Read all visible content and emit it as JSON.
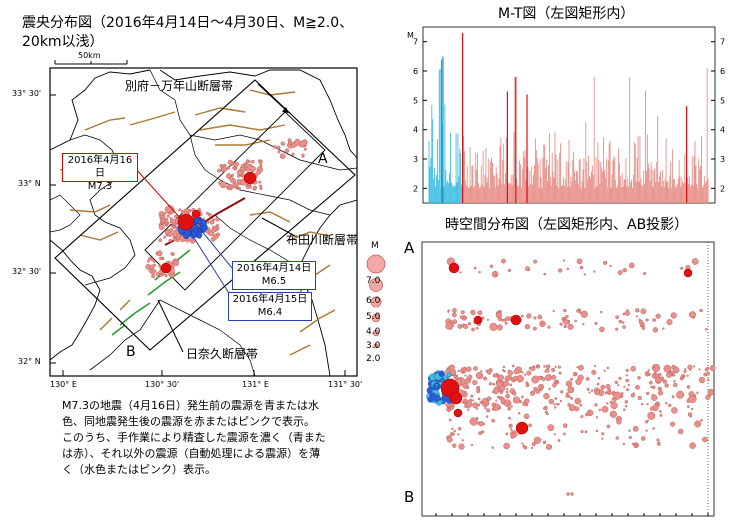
{
  "map": {
    "title_line1": "震央分布図（2016年4月14日～4月30日、M≧2.0、",
    "title_line2": "20km以浅）",
    "scale_label": "50km",
    "lat_labels": [
      "33° 30'",
      "33° N",
      "32° 30'",
      "32° N"
    ],
    "lon_labels": [
      "130° E",
      "130° 30'",
      "131° E",
      "131° 30'"
    ],
    "label_A": "A",
    "label_B": "B",
    "fault_beppu": "別府－万年山断層帯",
    "fault_futagawa": "布田川断層帯",
    "fault_hinagu": "日奈久断層帯",
    "callout_m73_date": "2016年4月16日",
    "callout_m73_mag": "M7.3",
    "callout_m65_date": "2016年4月14日",
    "callout_m65_mag": "M6.5",
    "callout_m64_date": "2016年4月15日",
    "callout_m64_mag": "M6.4",
    "legend_title": "M",
    "legend_values": [
      "7.0",
      "6.0",
      "5.0",
      "4.0",
      "3.0",
      "2.0"
    ],
    "colors": {
      "pre": "#2a5bd7",
      "post": "#e8908a",
      "post_dark": "#e01010",
      "pre_light": "#3fbfe0",
      "fault_brown": "#a87a30",
      "fault_green": "#2a9a2a"
    }
  },
  "mt": {
    "title": "M-T図（左図矩形内）",
    "axis_label": "M",
    "y_ticks": [
      "2",
      "3",
      "4",
      "5",
      "6",
      "7"
    ]
  },
  "st": {
    "title": "時空間分布図（左図矩形内、AB投影）",
    "label_A": "A",
    "label_B": "B"
  },
  "note": {
    "line1": "M7.3の地震（4月16日）発生前の震源を青または水",
    "line2": "色、同地震発生後の震源を赤またはピンクで表示。",
    "line3": "このうち、手作業により精査した震源を濃く（青また",
    "line4": "は赤）、それ以外の震源（自動処理による震源）を薄",
    "line5": "く（水色またはピンク）表示。"
  },
  "chart_data": [
    {
      "type": "scatter",
      "title": "震央分布図（2016年4月14日～4月30日、M≧2.0、20km以浅）",
      "xlabel": "",
      "ylabel": "",
      "xlim": [
        130.0,
        131.5
      ],
      "ylim": [
        32.0,
        33.5
      ],
      "legend": "right",
      "series": []
    },
    {
      "type": "bar",
      "title": "M-T図（左図矩形内）",
      "ylabel": "M",
      "ylim": [
        1.5,
        7.5
      ],
      "series": [],
      "notes": []
    },
    {
      "type": "scatter",
      "title": "時空間分布図（左図矩形内、AB投影）",
      "ylabel": "",
      "series": []
    }
  ]
}
